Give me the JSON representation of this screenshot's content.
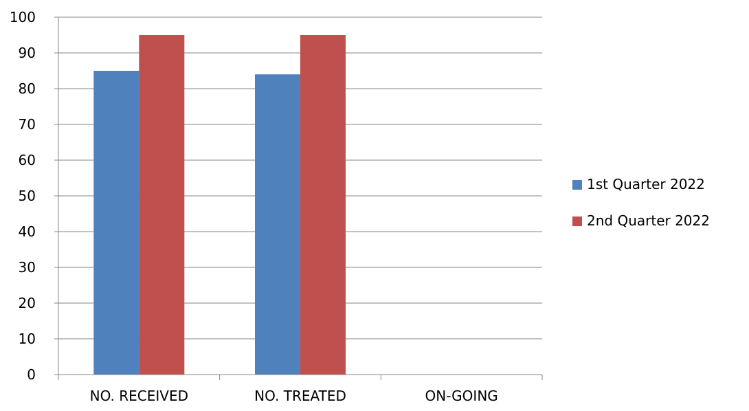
{
  "chart_data": {
    "type": "bar",
    "title": "",
    "xlabel": "",
    "ylabel": "",
    "categories": [
      "NO. RECEIVED",
      "NO. TREATED",
      "ON-GOING"
    ],
    "series": [
      {
        "name": "1st Quarter 2022",
        "color": "#4F81BD",
        "values": [
          85,
          84,
          0
        ]
      },
      {
        "name": "2nd Quarter 2022",
        "color": "#C0504D",
        "values": [
          95,
          95,
          0
        ]
      }
    ],
    "ylim": [
      0,
      100
    ],
    "yticks": [
      0,
      10,
      20,
      30,
      40,
      50,
      60,
      70,
      80,
      90,
      100
    ],
    "grid": true,
    "legend": "right"
  }
}
